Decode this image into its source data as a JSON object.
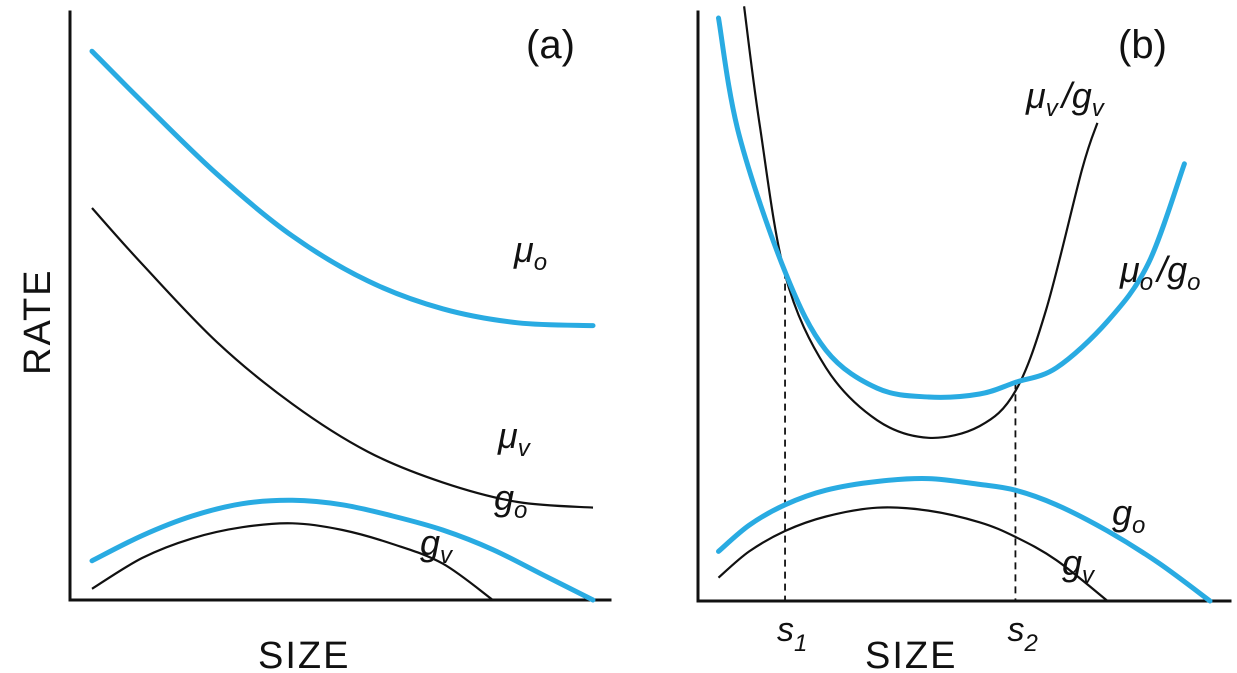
{
  "chart_data": [
    {
      "type": "line",
      "panel_label": "(a)",
      "xlabel": "SIZE",
      "ylabel": "RATE",
      "axis_ticks": "none",
      "grid": false,
      "series": [
        {
          "name": "μo",
          "label_main": "μ",
          "label_sub": "o",
          "color": "#29abe2",
          "style": "thick",
          "x": [
            0,
            0.1,
            0.25,
            0.4,
            0.55,
            0.7,
            0.85,
            1.0
          ],
          "y": [
            0.98,
            0.89,
            0.76,
            0.65,
            0.57,
            0.52,
            0.495,
            0.49
          ]
        },
        {
          "name": "μv",
          "label_main": "μ",
          "label_sub": "v",
          "color": "#111111",
          "style": "thin",
          "x": [
            0,
            0.1,
            0.25,
            0.4,
            0.55,
            0.7,
            0.85,
            1.0
          ],
          "y": [
            0.7,
            0.6,
            0.46,
            0.35,
            0.265,
            0.21,
            0.175,
            0.165
          ]
        },
        {
          "name": "go",
          "label_main": "g",
          "label_sub": "o",
          "color": "#29abe2",
          "style": "thick",
          "x": [
            0,
            0.1,
            0.2,
            0.3,
            0.4,
            0.5,
            0.6,
            0.7,
            0.8,
            0.9,
            1.0
          ],
          "y": [
            0.07,
            0.115,
            0.15,
            0.172,
            0.178,
            0.17,
            0.15,
            0.125,
            0.09,
            0.045,
            0.0
          ]
        },
        {
          "name": "gv",
          "label_main": "g",
          "label_sub": "v",
          "color": "#111111",
          "style": "thin",
          "x": [
            0,
            0.1,
            0.2,
            0.3,
            0.4,
            0.5,
            0.6,
            0.7,
            0.8
          ],
          "y": [
            0.02,
            0.075,
            0.11,
            0.13,
            0.137,
            0.125,
            0.1,
            0.065,
            0.0
          ]
        }
      ]
    },
    {
      "type": "line",
      "panel_label": "(b)",
      "xlabel": "SIZE",
      "ylabel": "",
      "axis_ticks": "none",
      "grid": false,
      "x_markers": [
        {
          "main": "s",
          "sub": "1",
          "x": 0.17
        },
        {
          "main": "s",
          "sub": "2",
          "x": 0.62
        }
      ],
      "series": [
        {
          "name": "μv/gv",
          "label_main": "μ",
          "label_sub": "v",
          "label_main2": "/g",
          "label_sub2": "v",
          "color": "#111111",
          "style": "thin",
          "x": [
            0.09,
            0.12,
            0.17,
            0.25,
            0.35,
            0.45,
            0.55,
            0.62,
            0.68,
            0.75,
            0.78
          ],
          "y": [
            1.02,
            0.82,
            0.56,
            0.4,
            0.31,
            0.28,
            0.3,
            0.36,
            0.5,
            0.74,
            0.82
          ]
        },
        {
          "name": "μo/go",
          "label_main": "μ",
          "label_sub": "o",
          "label_main2": "/g",
          "label_sub2": "o",
          "color": "#29abe2",
          "style": "thick",
          "x": [
            0.04,
            0.08,
            0.17,
            0.25,
            0.35,
            0.45,
            0.55,
            0.62,
            0.7,
            0.8,
            0.88,
            0.95
          ],
          "y": [
            1.0,
            0.8,
            0.565,
            0.43,
            0.365,
            0.35,
            0.355,
            0.375,
            0.4,
            0.48,
            0.58,
            0.75
          ]
        },
        {
          "name": "go",
          "label_main": "g",
          "label_sub": "o",
          "color": "#29abe2",
          "style": "thick",
          "x": [
            0.04,
            0.1,
            0.17,
            0.25,
            0.35,
            0.45,
            0.55,
            0.62,
            0.7,
            0.8,
            0.9,
            1.0
          ],
          "y": [
            0.085,
            0.13,
            0.165,
            0.19,
            0.205,
            0.21,
            0.2,
            0.19,
            0.165,
            0.12,
            0.065,
            0.0
          ]
        },
        {
          "name": "gv",
          "label_main": "g",
          "label_sub": "v",
          "color": "#111111",
          "style": "thin",
          "x": [
            0.04,
            0.1,
            0.17,
            0.25,
            0.35,
            0.45,
            0.55,
            0.62,
            0.7,
            0.8
          ],
          "y": [
            0.04,
            0.085,
            0.12,
            0.145,
            0.16,
            0.155,
            0.135,
            0.11,
            0.07,
            0.0
          ]
        }
      ]
    }
  ]
}
